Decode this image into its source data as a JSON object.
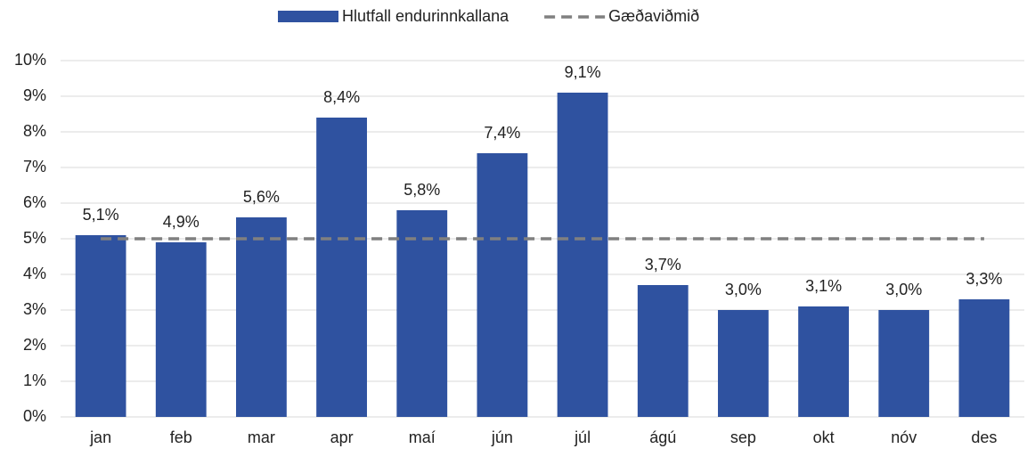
{
  "chart_data": {
    "type": "bar",
    "categories": [
      "jan",
      "feb",
      "mar",
      "apr",
      "maí",
      "jún",
      "júl",
      "ágú",
      "sep",
      "okt",
      "nóv",
      "des"
    ],
    "series": [
      {
        "name": "Hlutfall endurinnkallana",
        "type": "bar",
        "color": "#2f52a0",
        "values": [
          5.1,
          4.9,
          5.6,
          8.4,
          5.8,
          7.4,
          9.1,
          3.7,
          3.0,
          3.1,
          3.0,
          3.3
        ],
        "value_labels": [
          "5,1%",
          "4,9%",
          "5,6%",
          "8,4%",
          "5,8%",
          "7,4%",
          "9,1%",
          "3,7%",
          "3,0%",
          "3,1%",
          "3,0%",
          "3,3%"
        ]
      },
      {
        "name": "Gæðaviðmið",
        "type": "line",
        "color": "#808080",
        "dashed": true,
        "values": [
          5,
          5,
          5,
          5,
          5,
          5,
          5,
          5,
          5,
          5,
          5,
          5
        ]
      }
    ],
    "ylim": [
      0,
      10
    ],
    "yticks": [
      {
        "value": 0,
        "label": "0%"
      },
      {
        "value": 1,
        "label": "1%"
      },
      {
        "value": 2,
        "label": "2%"
      },
      {
        "value": 3,
        "label": "3%"
      },
      {
        "value": 4,
        "label": "4%"
      },
      {
        "value": 5,
        "label": "5%"
      },
      {
        "value": 6,
        "label": "6%"
      },
      {
        "value": 7,
        "label": "7%"
      },
      {
        "value": 8,
        "label": "8%"
      },
      {
        "value": 9,
        "label": "9%"
      },
      {
        "value": 10,
        "label": "10%"
      }
    ],
    "grid": true,
    "legend": "top"
  }
}
